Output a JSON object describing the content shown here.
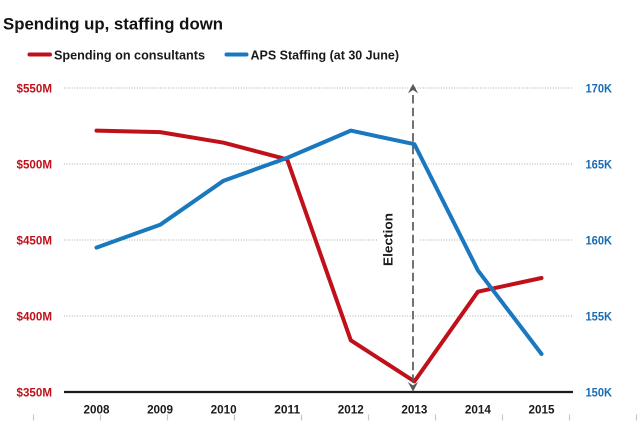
{
  "title": "Spending up, staffing down",
  "legend": {
    "items": [
      {
        "label": "Spending on consultants",
        "color": "#c0111b"
      },
      {
        "label": "APS Staffing (at 30 June)",
        "color": "#1a78be"
      }
    ]
  },
  "annotation": {
    "label": "Election",
    "at_x": 2013,
    "style": "dashed vertical double-arrow",
    "color": "#595959"
  },
  "chart_data": {
    "type": "line",
    "x": [
      2008,
      2009,
      2010,
      2011,
      2012,
      2013,
      2014,
      2015
    ],
    "x_ticks": [
      "2008",
      "2009",
      "2010",
      "2011",
      "2012",
      "2013",
      "2014",
      "2015"
    ],
    "series": [
      {
        "name": "Spending on consultants",
        "axis": "left",
        "color": "#c0111b",
        "values": [
          522,
          521,
          514,
          503,
          384,
          357,
          416,
          425
        ],
        "unit": "$M"
      },
      {
        "name": "APS Staffing (at 30 June)",
        "axis": "right",
        "color": "#1a78be",
        "values": [
          159.5,
          161,
          163.9,
          165.4,
          167.2,
          166.3,
          158,
          152.5
        ],
        "unit": "K"
      }
    ],
    "left_axis": {
      "lim": [
        350,
        550
      ],
      "color": "#c0111b",
      "ticks": [
        {
          "label": "$350M",
          "value": 350
        },
        {
          "label": "$400M",
          "value": 400
        },
        {
          "label": "$450M",
          "value": 450
        },
        {
          "label": "$500M",
          "value": 500
        },
        {
          "label": "$550M",
          "value": 550
        }
      ]
    },
    "right_axis": {
      "lim": [
        150,
        170
      ],
      "color": "#1a6cb4",
      "ticks": [
        {
          "label": "150K",
          "value": 150
        },
        {
          "label": "155K",
          "value": 155
        },
        {
          "label": "160K",
          "value": 160
        },
        {
          "label": "165K",
          "value": 165
        },
        {
          "label": "170K",
          "value": 170
        }
      ]
    },
    "grid": "horizontal dotted",
    "grid_color": "#aeaeae",
    "axis_line_color": "#1a1a1a",
    "legend_position": "top",
    "title": "Spending up, staffing down"
  }
}
